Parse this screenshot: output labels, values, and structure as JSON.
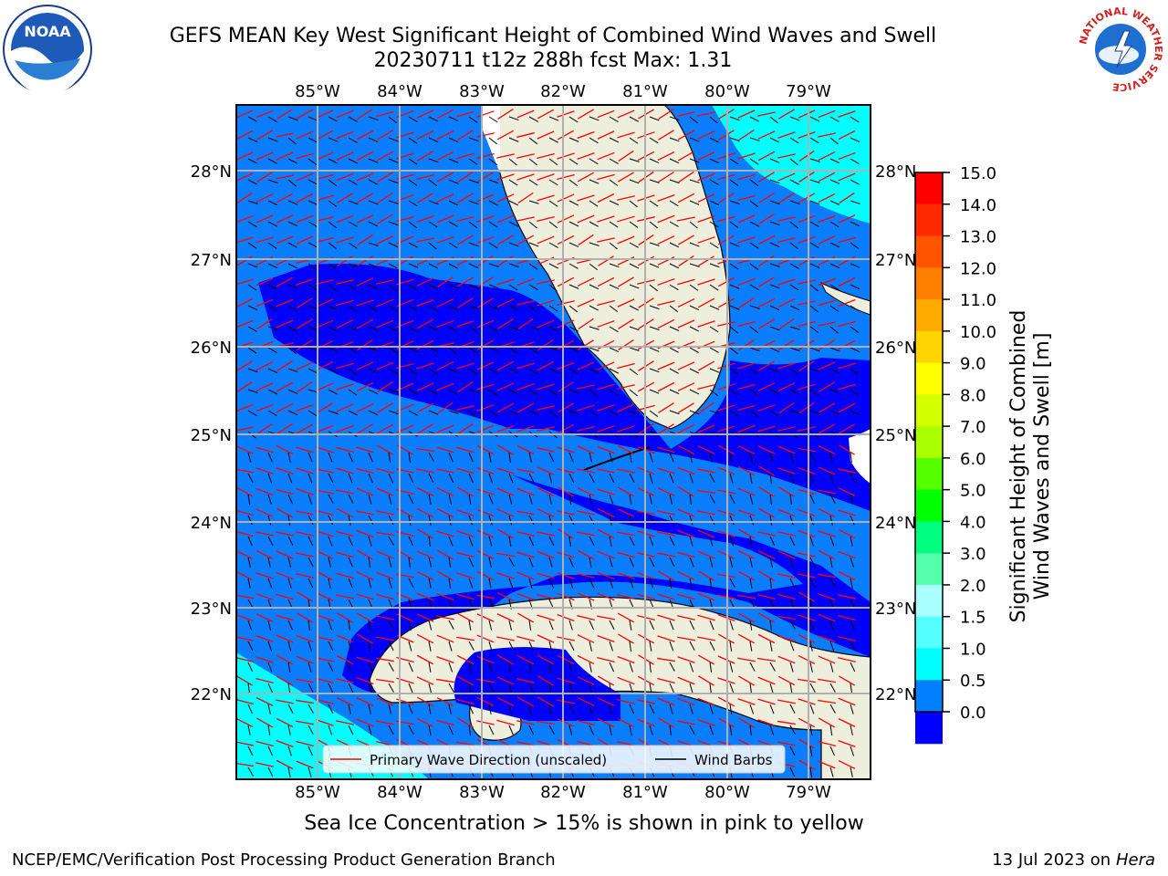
{
  "title": {
    "line1": "GEFS MEAN Key West Significant Height of Combined Wind Waves and Swell",
    "line2": "20230711 t12z 288h fcst    Max: 1.31"
  },
  "map": {
    "lon_labels": [
      "85°W",
      "84°W",
      "83°W",
      "82°W",
      "81°W",
      "80°W",
      "79°W"
    ],
    "lat_labels": [
      "28°N",
      "27°N",
      "26°N",
      "25°N",
      "24°N",
      "23°N",
      "22°N"
    ],
    "legend": {
      "wave_label": "Primary Wave Direction (unscaled)",
      "wind_label": "Wind Barbs"
    },
    "colors": {
      "land": "#eeeedc",
      "lt_blue": "#0a7eff",
      "dk_blue": "#0000ff",
      "cyan": "#00ffff",
      "arrow": "#ff0000"
    }
  },
  "colorbar": {
    "label": "Significant Height of Combined Wind Waves and Swell [m]",
    "label_line1": "Significant Height of Combined",
    "label_line2": "Wind Waves and Swell [m]",
    "ticks": [
      "15.0",
      "14.0",
      "13.0",
      "12.0",
      "11.0",
      "10.0",
      "9.0",
      "8.0",
      "7.0",
      "6.0",
      "5.0",
      "4.0",
      "3.0",
      "2.0",
      "1.5",
      "1.0",
      "0.5",
      "0.0"
    ],
    "colors": [
      "#ff0000",
      "#ff2a00",
      "#ff5500",
      "#ff8000",
      "#ffaa00",
      "#ffd400",
      "#ffff00",
      "#d4ff00",
      "#aaff00",
      "#55ff00",
      "#00ff00",
      "#00ff80",
      "#55ffaa",
      "#aaffff",
      "#55ffff",
      "#00ffff",
      "#0080ff",
      "#0000ff"
    ]
  },
  "note": "Sea Ice Concentration > 15% is shown in pink to yellow",
  "footer": {
    "left": "NCEP/EMC/Verification Post Processing Product Generation Branch",
    "right_date": "13 Jul 2023 on ",
    "right_host": "Hera"
  },
  "logos": {
    "noaa": "NOAA",
    "nws_ring": "NATIONAL WEATHER SERVICE"
  }
}
